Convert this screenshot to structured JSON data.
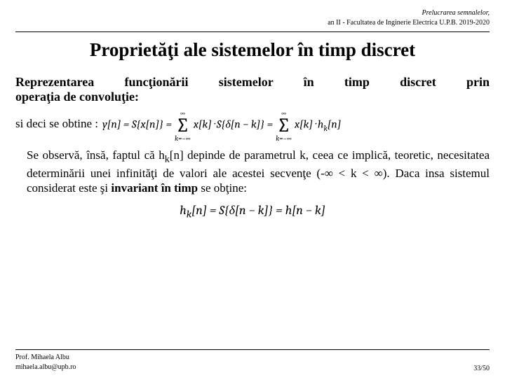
{
  "header": {
    "line1": "Prelucrarea semnalelor,",
    "line2": "an II - Facultatea de Inginerie Electrica U.P.B. 2019-2020"
  },
  "title": "Proprietăţi ale sistemelor în timp discret",
  "subtitle": {
    "line1": "Reprezentarea funcţionării sistemelor în timp discret prin",
    "line2": "operaţia de convoluţie:"
  },
  "lead": "si deci se obtine :",
  "eq1": {
    "lhs": "y[n] = S{x[n]} =",
    "sum_top": "∞",
    "sum_bot": "k=−∞",
    "term1": "x[k] · S{δ[n − k]} =",
    "term2": "x[k] · h",
    "term2_sub": "k",
    "term2_tail": "[n]"
  },
  "body": {
    "p1a": "Se observă, însă, faptul că h",
    "p1sub": "k",
    "p1b": "[n] depinde de parametrul k, ceea ce implică, teoretic, necesitatea determinării unei infinităţi de valori ale acestei secvenţe (-∞ < k < ∞). Daca insa sistemul considerat este şi ",
    "p1bold": "invariant în timp",
    "p1c": " se obţine:"
  },
  "eq2": {
    "text": "h",
    "sub": "k",
    "tail": "[n] = S{δ[n − k]} = h[n − k]"
  },
  "footer": {
    "author": "Prof. Mihaela Albu",
    "email": "mihaela.albu@upb.ro",
    "page": "33/50"
  }
}
